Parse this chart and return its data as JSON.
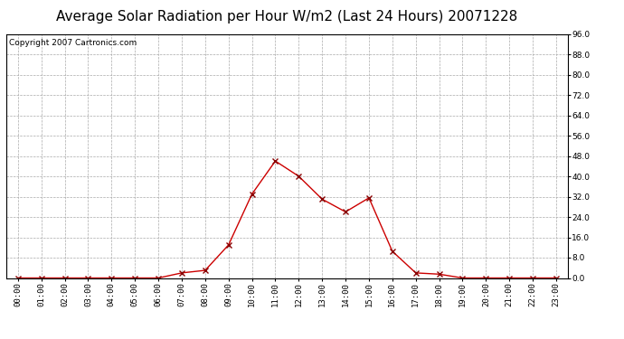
{
  "title": "Average Solar Radiation per Hour W/m2 (Last 24 Hours) 20071228",
  "copyright": "Copyright 2007 Cartronics.com",
  "hours": [
    "00:00",
    "01:00",
    "02:00",
    "03:00",
    "04:00",
    "05:00",
    "06:00",
    "07:00",
    "08:00",
    "09:00",
    "10:00",
    "11:00",
    "12:00",
    "13:00",
    "14:00",
    "15:00",
    "16:00",
    "17:00",
    "18:00",
    "19:00",
    "20:00",
    "21:00",
    "22:00",
    "23:00"
  ],
  "values": [
    0.0,
    0.0,
    0.0,
    0.0,
    0.0,
    0.0,
    0.0,
    2.0,
    3.0,
    13.0,
    33.0,
    46.0,
    40.0,
    31.0,
    26.0,
    31.5,
    10.5,
    2.0,
    1.5,
    0.0,
    0.0,
    0.0,
    0.0,
    0.0
  ],
  "line_color": "#cc0000",
  "marker": "x",
  "marker_color": "#880000",
  "marker_size": 4,
  "marker_linewidth": 1.0,
  "line_width": 1.0,
  "background_color": "#ffffff",
  "plot_bg_color": "#ffffff",
  "grid_color": "#aaaaaa",
  "grid_linestyle": "--",
  "title_fontsize": 11,
  "copyright_fontsize": 6.5,
  "tick_fontsize": 6.5,
  "ylim": [
    0,
    96
  ],
  "yticks": [
    0.0,
    8.0,
    16.0,
    24.0,
    32.0,
    40.0,
    48.0,
    56.0,
    64.0,
    72.0,
    80.0,
    88.0,
    96.0
  ]
}
